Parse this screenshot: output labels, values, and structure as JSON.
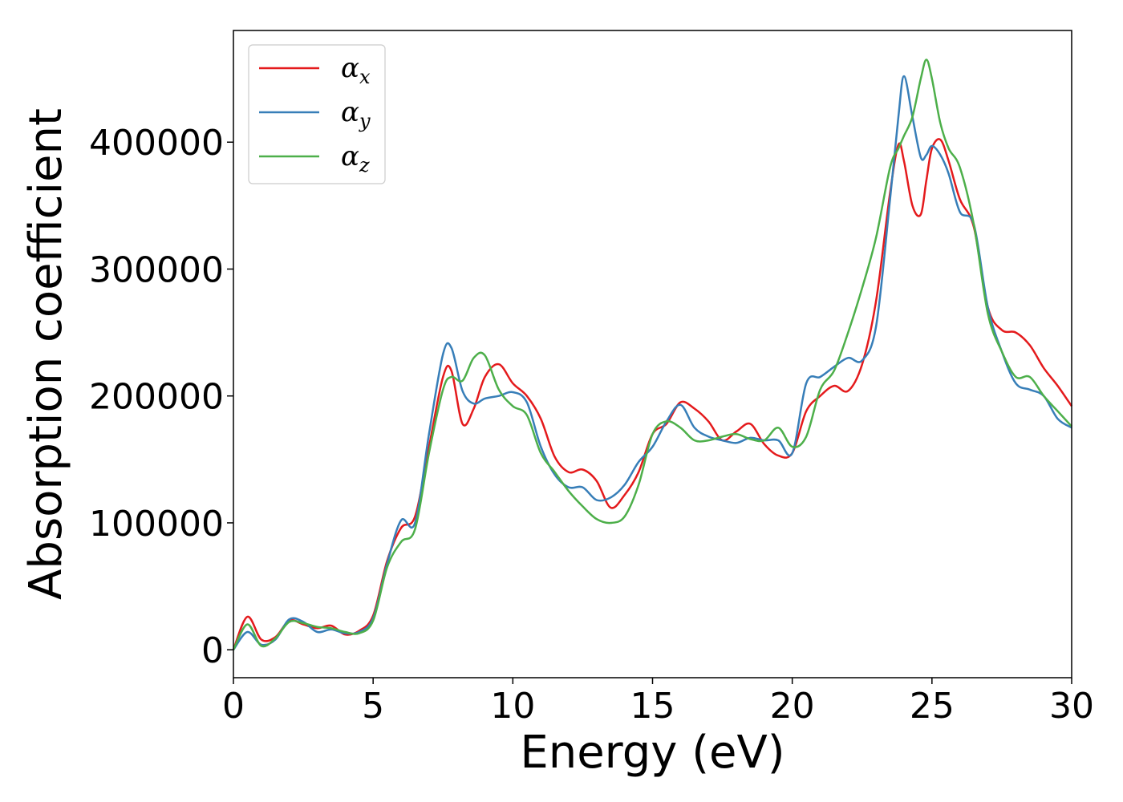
{
  "chart_data": {
    "type": "line",
    "xlabel": "Energy (eV)",
    "ylabel": "Absorption coefficient",
    "xlim": [
      0,
      30
    ],
    "ylim": [
      -22000,
      488000
    ],
    "xticks": [
      "0",
      "5",
      "10",
      "15",
      "20",
      "25",
      "30"
    ],
    "yticks": [
      "0",
      "100000",
      "200000",
      "300000",
      "400000"
    ],
    "grid": false,
    "legend": "top-left",
    "legend_symbol": "α",
    "x": [
      0,
      0.5,
      1.0,
      1.5,
      2.0,
      2.5,
      3.0,
      3.5,
      4.0,
      4.5,
      5.0,
      5.5,
      6.0,
      6.5,
      7.0,
      7.5,
      7.8,
      8.2,
      8.6,
      9.0,
      9.5,
      10.0,
      10.5,
      11.0,
      11.5,
      12.0,
      12.5,
      13.0,
      13.5,
      14.0,
      14.5,
      15.0,
      15.5,
      16.0,
      16.5,
      17.0,
      17.5,
      18.0,
      18.5,
      19.0,
      19.5,
      20.0,
      20.5,
      21.0,
      21.5,
      22.0,
      22.5,
      23.0,
      23.5,
      23.8,
      24.0,
      24.3,
      24.6,
      24.8,
      25.0,
      25.3,
      25.6,
      26.0,
      26.5,
      27.0,
      27.5,
      28.0,
      28.5,
      29.0,
      29.5,
      30.0
    ],
    "series": [
      {
        "name": "x",
        "color": "#e41a1c",
        "values": [
          0,
          26000,
          8000,
          10000,
          23000,
          20000,
          17000,
          19000,
          12000,
          15000,
          27000,
          70000,
          96000,
          105000,
          160000,
          215000,
          220000,
          178000,
          190000,
          215000,
          225000,
          210000,
          200000,
          182000,
          152000,
          140000,
          142000,
          133000,
          112000,
          122000,
          140000,
          170000,
          178000,
          195000,
          190000,
          180000,
          165000,
          172000,
          178000,
          162000,
          153000,
          155000,
          188000,
          200000,
          208000,
          204000,
          225000,
          275000,
          360000,
          398000,
          385000,
          350000,
          343000,
          370000,
          395000,
          402000,
          385000,
          355000,
          333000,
          270000,
          252000,
          250000,
          240000,
          222000,
          208000,
          192000
        ]
      },
      {
        "name": "y",
        "color": "#377eb8",
        "values": [
          0,
          14000,
          4000,
          8000,
          24000,
          22000,
          14000,
          16000,
          13000,
          14000,
          25000,
          68000,
          102000,
          100000,
          170000,
          233000,
          238000,
          204000,
          194000,
          198000,
          200000,
          203000,
          195000,
          160000,
          138000,
          128000,
          128000,
          118000,
          120000,
          130000,
          148000,
          160000,
          180000,
          193000,
          175000,
          168000,
          165000,
          163000,
          167000,
          165000,
          165000,
          155000,
          210000,
          215000,
          223000,
          230000,
          228000,
          255000,
          355000,
          420000,
          452000,
          420000,
          388000,
          390000,
          397000,
          390000,
          375000,
          345000,
          335000,
          270000,
          235000,
          210000,
          205000,
          200000,
          182000,
          175000
        ]
      },
      {
        "name": "z",
        "color": "#4daf4a",
        "values": [
          0,
          20000,
          3000,
          9000,
          22000,
          21000,
          18000,
          17000,
          14000,
          13000,
          23000,
          65000,
          85000,
          95000,
          155000,
          205000,
          215000,
          212000,
          230000,
          232000,
          205000,
          192000,
          185000,
          155000,
          140000,
          125000,
          113000,
          103000,
          100000,
          105000,
          130000,
          170000,
          180000,
          175000,
          165000,
          165000,
          168000,
          170000,
          166000,
          165000,
          175000,
          160000,
          168000,
          205000,
          220000,
          250000,
          285000,
          325000,
          380000,
          395000,
          405000,
          420000,
          450000,
          465000,
          450000,
          415000,
          395000,
          380000,
          335000,
          265000,
          235000,
          215000,
          215000,
          200000,
          188000,
          176000
        ]
      }
    ]
  }
}
